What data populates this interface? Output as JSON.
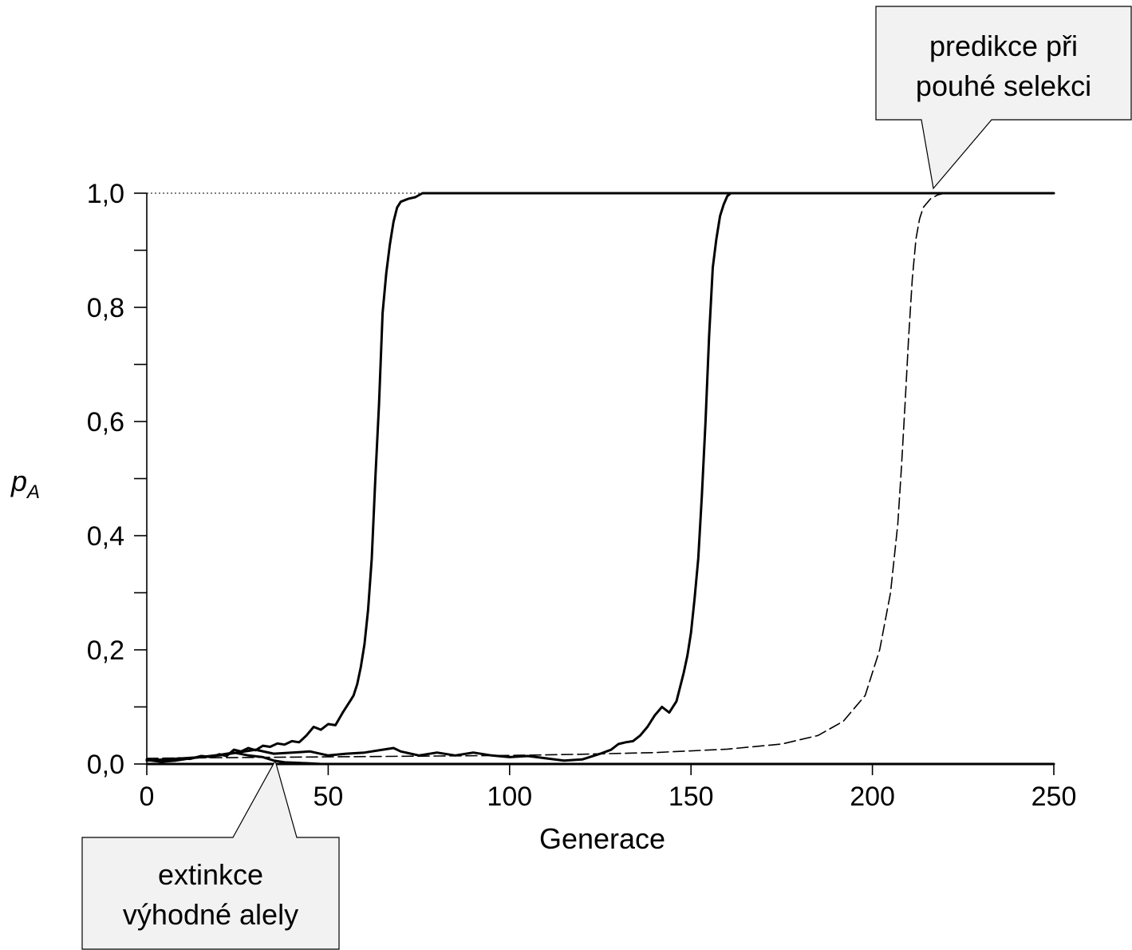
{
  "chart_data": {
    "type": "line",
    "xlabel": "Generace",
    "ylabel": "p",
    "ylabel_subscript": "A",
    "xlim": [
      0,
      250
    ],
    "ylim": [
      0,
      1
    ],
    "x_ticks": [
      0,
      50,
      100,
      150,
      200,
      250
    ],
    "x_tick_labels": [
      "0",
      "50",
      "100",
      "150",
      "200",
      "250"
    ],
    "y_ticks": [
      0,
      0.2,
      0.4,
      0.6,
      0.8,
      1.0
    ],
    "y_tick_labels": [
      "0,0",
      "0,2",
      "0,4",
      "0,6",
      "0,8",
      "1,0"
    ],
    "grid": false,
    "reference_line": {
      "y": 1.0,
      "x_range": [
        0,
        77
      ],
      "style": "dotted"
    },
    "series": [
      {
        "style": "solid",
        "points": [
          [
            0,
            0.008
          ],
          [
            3,
            0.005
          ],
          [
            6,
            0.006
          ],
          [
            9,
            0.01
          ],
          [
            12,
            0.009
          ],
          [
            15,
            0.014
          ],
          [
            18,
            0.012
          ],
          [
            20,
            0.017
          ],
          [
            22,
            0.014
          ],
          [
            24,
            0.025
          ],
          [
            26,
            0.022
          ],
          [
            28,
            0.028
          ],
          [
            30,
            0.024
          ],
          [
            32,
            0.032
          ],
          [
            34,
            0.03
          ],
          [
            36,
            0.036
          ],
          [
            38,
            0.034
          ],
          [
            40,
            0.04
          ],
          [
            42,
            0.038
          ],
          [
            44,
            0.05
          ],
          [
            46,
            0.065
          ],
          [
            48,
            0.06
          ],
          [
            50,
            0.07
          ],
          [
            52,
            0.068
          ],
          [
            54,
            0.09
          ],
          [
            56,
            0.11
          ],
          [
            57,
            0.12
          ],
          [
            58,
            0.14
          ],
          [
            59,
            0.17
          ],
          [
            60,
            0.21
          ],
          [
            61,
            0.27
          ],
          [
            62,
            0.36
          ],
          [
            63,
            0.5
          ],
          [
            64,
            0.63
          ],
          [
            65,
            0.79
          ],
          [
            66,
            0.86
          ],
          [
            67,
            0.91
          ],
          [
            68,
            0.95
          ],
          [
            69,
            0.975
          ],
          [
            70,
            0.985
          ],
          [
            72,
            0.99
          ],
          [
            74,
            0.993
          ],
          [
            76,
            1.0
          ],
          [
            77,
            1.0
          ],
          [
            250,
            1.0
          ]
        ]
      },
      {
        "style": "solid",
        "points": [
          [
            0,
            0.006
          ],
          [
            5,
            0.008
          ],
          [
            10,
            0.01
          ],
          [
            15,
            0.012
          ],
          [
            20,
            0.015
          ],
          [
            25,
            0.02
          ],
          [
            30,
            0.025
          ],
          [
            35,
            0.018
          ],
          [
            40,
            0.02
          ],
          [
            45,
            0.022
          ],
          [
            50,
            0.015
          ],
          [
            55,
            0.018
          ],
          [
            60,
            0.02
          ],
          [
            65,
            0.025
          ],
          [
            68,
            0.028
          ],
          [
            70,
            0.022
          ],
          [
            75,
            0.015
          ],
          [
            80,
            0.02
          ],
          [
            85,
            0.015
          ],
          [
            90,
            0.02
          ],
          [
            95,
            0.015
          ],
          [
            100,
            0.012
          ],
          [
            105,
            0.014
          ],
          [
            110,
            0.01
          ],
          [
            115,
            0.006
          ],
          [
            120,
            0.008
          ],
          [
            122,
            0.012
          ],
          [
            125,
            0.018
          ],
          [
            128,
            0.025
          ],
          [
            130,
            0.035
          ],
          [
            132,
            0.038
          ],
          [
            134,
            0.04
          ],
          [
            136,
            0.05
          ],
          [
            138,
            0.065
          ],
          [
            140,
            0.085
          ],
          [
            142,
            0.1
          ],
          [
            144,
            0.09
          ],
          [
            146,
            0.11
          ],
          [
            148,
            0.16
          ],
          [
            149,
            0.19
          ],
          [
            150,
            0.23
          ],
          [
            151,
            0.29
          ],
          [
            152,
            0.36
          ],
          [
            153,
            0.47
          ],
          [
            154,
            0.6
          ],
          [
            155,
            0.75
          ],
          [
            156,
            0.87
          ],
          [
            157,
            0.92
          ],
          [
            158,
            0.96
          ],
          [
            159,
            0.98
          ],
          [
            160,
            0.995
          ],
          [
            161,
            1.0
          ],
          [
            165,
            1.0
          ]
        ]
      },
      {
        "style": "solid",
        "points": [
          [
            0,
            0.007
          ],
          [
            4,
            0.004
          ],
          [
            8,
            0.006
          ],
          [
            12,
            0.01
          ],
          [
            16,
            0.013
          ],
          [
            20,
            0.016
          ],
          [
            24,
            0.02
          ],
          [
            28,
            0.015
          ],
          [
            32,
            0.012
          ],
          [
            35,
            0.006
          ],
          [
            38,
            0.003
          ],
          [
            42,
            0.002
          ],
          [
            45,
            0.001
          ],
          [
            48,
            0.0
          ],
          [
            250,
            0.0
          ]
        ]
      },
      {
        "style": "dashed",
        "points": [
          [
            0,
            0.01
          ],
          [
            20,
            0.011
          ],
          [
            40,
            0.012
          ],
          [
            60,
            0.013
          ],
          [
            80,
            0.014
          ],
          [
            100,
            0.015
          ],
          [
            120,
            0.017
          ],
          [
            140,
            0.02
          ],
          [
            160,
            0.026
          ],
          [
            175,
            0.035
          ],
          [
            185,
            0.05
          ],
          [
            192,
            0.075
          ],
          [
            198,
            0.12
          ],
          [
            202,
            0.2
          ],
          [
            205,
            0.3
          ],
          [
            207,
            0.42
          ],
          [
            208,
            0.52
          ],
          [
            209,
            0.63
          ],
          [
            210,
            0.75
          ],
          [
            211,
            0.85
          ],
          [
            212,
            0.92
          ],
          [
            213,
            0.955
          ],
          [
            214,
            0.975
          ],
          [
            216,
            0.99
          ],
          [
            218,
            0.997
          ],
          [
            220,
            1.0
          ],
          [
            250,
            1.0
          ]
        ]
      }
    ],
    "annotations": [
      {
        "lines": [
          "predikce při",
          "pouhé selekci"
        ],
        "target": [
          219,
          1.0
        ],
        "position": "top-right"
      },
      {
        "lines": [
          "extinkce",
          "výhodné alely"
        ],
        "target": [
          35,
          0.0
        ],
        "position": "bottom-left"
      }
    ]
  },
  "colors": {
    "line": "#000000",
    "callout_fill": "#f2f2f2",
    "background": "#ffffff"
  }
}
